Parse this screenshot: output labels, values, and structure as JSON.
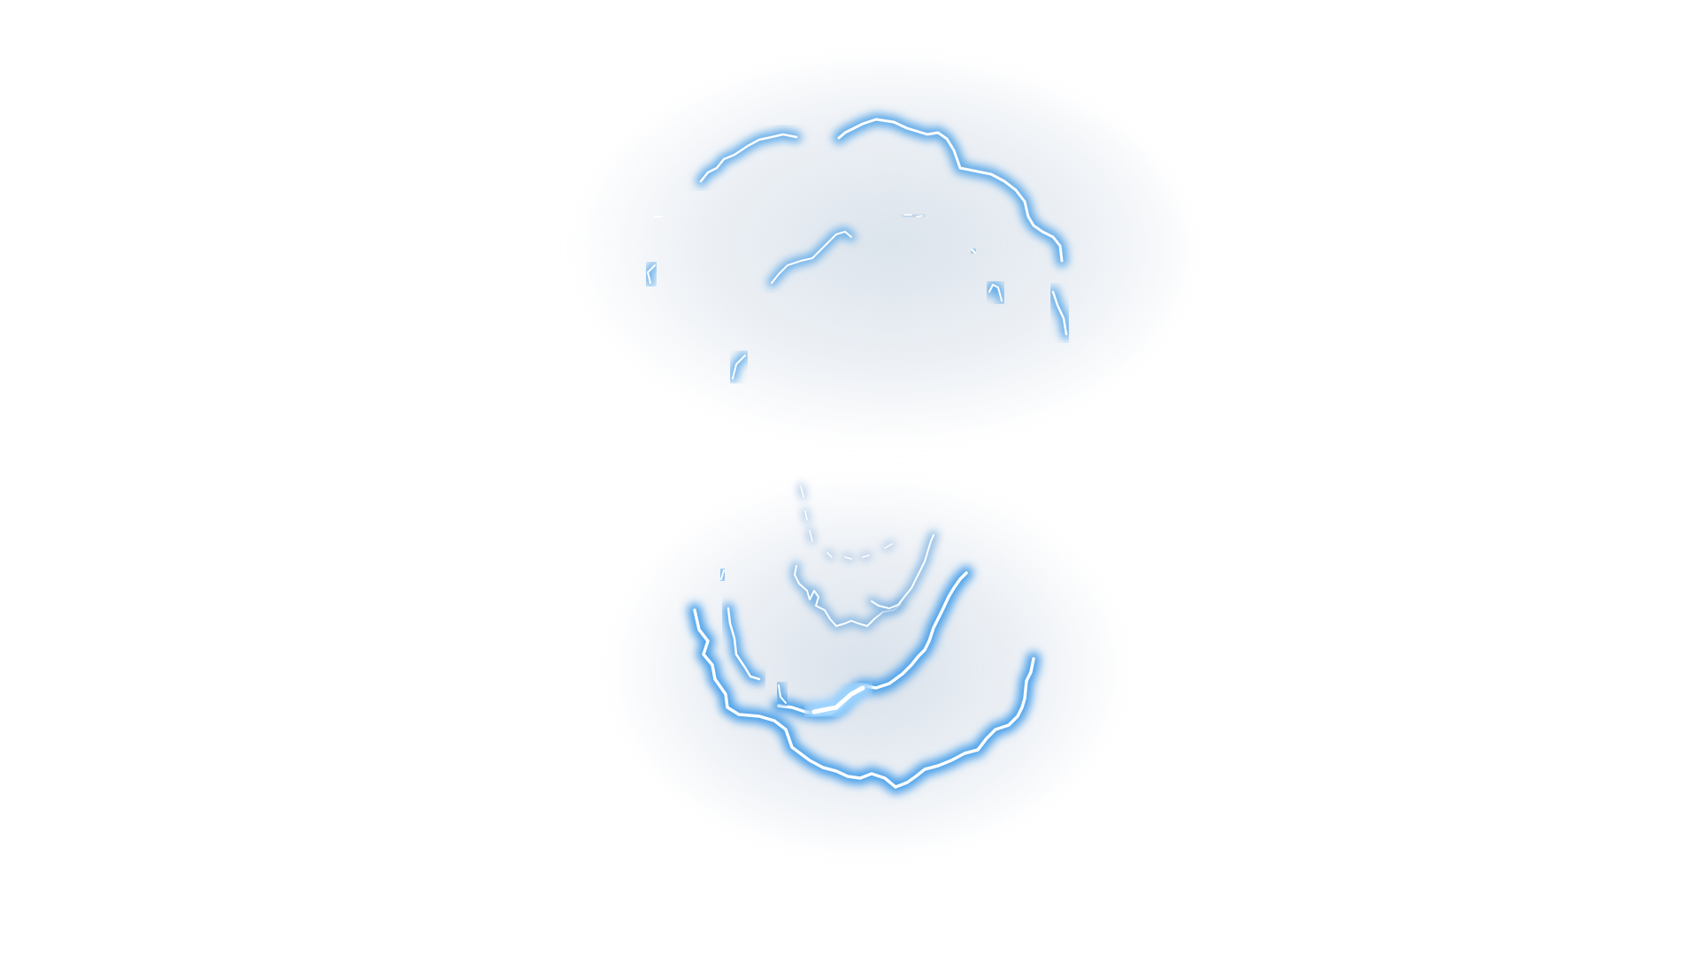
{
  "image": {
    "description_kind": "vfx-sprite",
    "background_color": "#ffffff",
    "effect": {
      "name": "electric-lightning-rings",
      "glow_color": "#5aa8e8",
      "core_color": "#ffffff",
      "haze_color": "#c8d4e2",
      "ring_count": 2
    }
  }
}
